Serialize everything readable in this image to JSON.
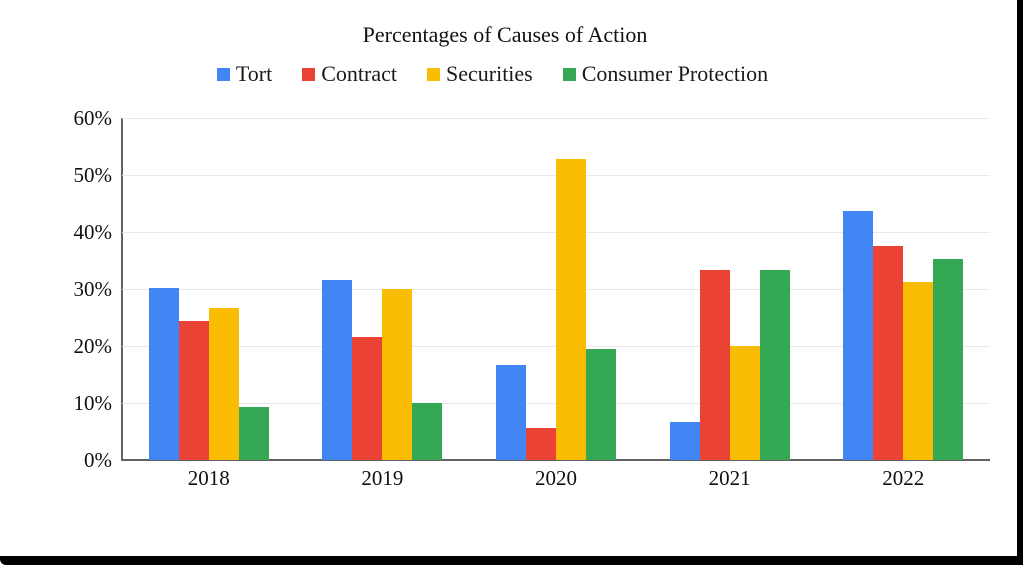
{
  "page": {
    "title": "Percentages of Causes of Action"
  },
  "legend": [
    {
      "label": "Tort",
      "color": "#4285F4"
    },
    {
      "label": "Contract",
      "color": "#EA4335"
    },
    {
      "label": "Securities",
      "color": "#FBBC04"
    },
    {
      "label": "Consumer Protection",
      "color": "#34A853"
    }
  ],
  "chart_data": {
    "type": "bar",
    "title": "Percentages of Causes of Action",
    "categories": [
      "2018",
      "2019",
      "2020",
      "2021",
      "2022"
    ],
    "series": [
      {
        "name": "Tort",
        "color": "#4285F4",
        "values": [
          30.2,
          31.6,
          16.7,
          6.7,
          43.7
        ]
      },
      {
        "name": "Contract",
        "color": "#EA4335",
        "values": [
          24.4,
          21.6,
          5.6,
          33.3,
          37.5
        ]
      },
      {
        "name": "Securities",
        "color": "#FBBC04",
        "values": [
          26.6,
          30.0,
          52.8,
          20.0,
          31.2
        ]
      },
      {
        "name": "Consumer Protection",
        "color": "#34A853",
        "values": [
          9.3,
          10.0,
          19.5,
          33.3,
          35.3
        ]
      }
    ],
    "xlabel": "",
    "ylabel": "",
    "ylim": [
      0,
      60
    ],
    "y_ticks": [
      "60%",
      "50%",
      "40%",
      "30%",
      "20%",
      "10%",
      "0%"
    ],
    "grid": true,
    "legend_position": "top"
  }
}
